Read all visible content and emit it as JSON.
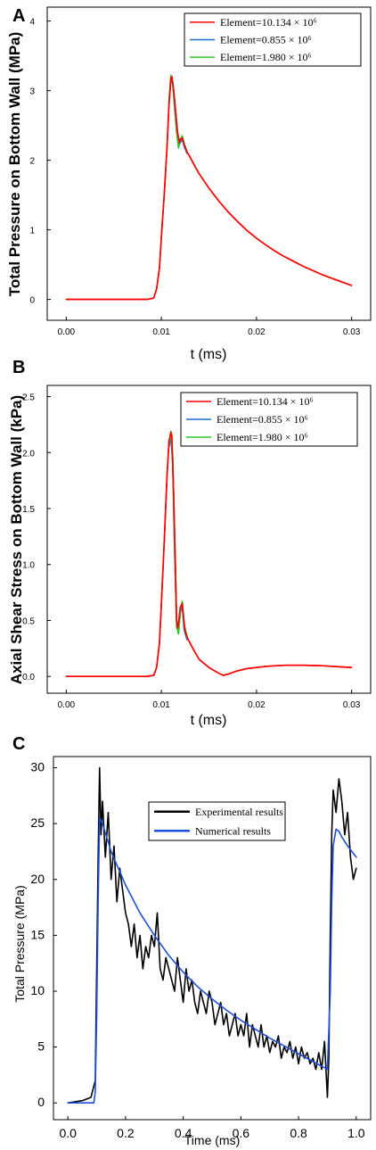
{
  "chart_data": [
    {
      "panel": "A",
      "type": "line",
      "xlabel": "t (ms)",
      "ylabel": "Total Pressure on Bottom Wall (MPa)",
      "xlim": [
        -0.002,
        0.032
      ],
      "ylim": [
        -0.3,
        4.2
      ],
      "xticks": [
        "0.00",
        "0.01",
        "0.02",
        "0.03"
      ],
      "yticks": [
        "0",
        "1",
        "2",
        "3",
        "4"
      ],
      "legend_position": "top-right",
      "series": [
        {
          "name": "Element=10.134 × 10⁶",
          "color": "#ff0000",
          "x": [
            0,
            0.0085,
            0.0092,
            0.0095,
            0.0098,
            0.01,
            0.0103,
            0.0106,
            0.0108,
            0.011,
            0.0111,
            0.0113,
            0.0115,
            0.0117,
            0.0119,
            0.012,
            0.0122,
            0.0124,
            0.0127,
            0.013,
            0.0135,
            0.014,
            0.015,
            0.016,
            0.017,
            0.018,
            0.019,
            0.02,
            0.021,
            0.022,
            0.023,
            0.024,
            0.025,
            0.026,
            0.027,
            0.028,
            0.029,
            0.03
          ],
          "y": [
            0,
            0,
            0.02,
            0.15,
            0.45,
            0.9,
            1.5,
            2.2,
            2.8,
            3.18,
            3.2,
            3.0,
            2.7,
            2.4,
            2.25,
            2.3,
            2.32,
            2.22,
            2.12,
            2.05,
            1.92,
            1.8,
            1.6,
            1.42,
            1.26,
            1.12,
            0.99,
            0.88,
            0.78,
            0.69,
            0.61,
            0.54,
            0.47,
            0.41,
            0.35,
            0.3,
            0.25,
            0.2
          ]
        },
        {
          "name": "Element=0.855 × 10⁶",
          "color": "#1f6fd1",
          "x": [
            0.0108,
            0.011,
            0.0112,
            0.0114,
            0.0116,
            0.0118,
            0.012,
            0.0122,
            0.0124,
            0.0127
          ],
          "y": [
            2.8,
            3.16,
            3.1,
            2.75,
            2.42,
            2.2,
            2.26,
            2.3,
            2.2,
            2.1
          ]
        },
        {
          "name": "Element=1.980 × 10⁶",
          "color": "#2ec82e",
          "x": [
            0.0108,
            0.011,
            0.0112,
            0.0114,
            0.0116,
            0.0118,
            0.012,
            0.0122,
            0.0124,
            0.0127
          ],
          "y": [
            2.82,
            3.22,
            3.12,
            2.78,
            2.45,
            2.18,
            2.3,
            2.35,
            2.24,
            2.12
          ]
        }
      ]
    },
    {
      "panel": "B",
      "type": "line",
      "xlabel": "t (ms)",
      "ylabel": "Axial Shear Stress on Bottom Wall (kPa)",
      "xlim": [
        -0.002,
        0.032
      ],
      "ylim": [
        -0.15,
        2.6
      ],
      "xticks": [
        "0.00",
        "0.01",
        "0.02",
        "0.03"
      ],
      "yticks": [
        "0.0",
        "0.5",
        "1.0",
        "1.5",
        "2.0",
        "2.5"
      ],
      "legend_position": "top-right",
      "series": [
        {
          "name": "Element=10.134 × 10⁶",
          "color": "#ff0000",
          "x": [
            0,
            0.0085,
            0.0092,
            0.0095,
            0.0098,
            0.01,
            0.0103,
            0.0106,
            0.0108,
            0.011,
            0.0111,
            0.0113,
            0.0115,
            0.0116,
            0.0117,
            0.0118,
            0.0119,
            0.012,
            0.0122,
            0.0123,
            0.0125,
            0.0127,
            0.013,
            0.0135,
            0.014,
            0.015,
            0.016,
            0.0165,
            0.017,
            0.018,
            0.019,
            0.02,
            0.021,
            0.022,
            0.023,
            0.024,
            0.025,
            0.026,
            0.027,
            0.028,
            0.029,
            0.03
          ],
          "y": [
            0,
            0,
            0.01,
            0.08,
            0.3,
            0.65,
            1.2,
            1.8,
            2.1,
            2.18,
            2.15,
            1.6,
            0.9,
            0.5,
            0.43,
            0.47,
            0.55,
            0.62,
            0.65,
            0.55,
            0.4,
            0.35,
            0.3,
            0.22,
            0.15,
            0.08,
            0.03,
            0.01,
            0.02,
            0.05,
            0.07,
            0.08,
            0.09,
            0.095,
            0.1,
            0.1,
            0.1,
            0.098,
            0.095,
            0.09,
            0.085,
            0.08
          ]
        },
        {
          "name": "Element=0.855 × 10⁶",
          "color": "#1f6fd1",
          "x": [
            0.0108,
            0.011,
            0.0112,
            0.0114,
            0.0116,
            0.0118,
            0.012,
            0.0122,
            0.0124,
            0.0127
          ],
          "y": [
            2.05,
            2.15,
            1.9,
            1.1,
            0.5,
            0.4,
            0.58,
            0.62,
            0.42,
            0.33
          ]
        },
        {
          "name": "Element=1.980 × 10⁶",
          "color": "#2ec82e",
          "x": [
            0.0108,
            0.011,
            0.0112,
            0.0114,
            0.0116,
            0.0118,
            0.012,
            0.0122,
            0.0124,
            0.0127
          ],
          "y": [
            2.08,
            2.19,
            1.95,
            1.15,
            0.45,
            0.38,
            0.6,
            0.67,
            0.46,
            0.36
          ]
        }
      ]
    },
    {
      "panel": "C",
      "type": "line",
      "xlabel": "Time (ms)",
      "ylabel": "Total Pressure (MPa)",
      "xlim": [
        -0.05,
        1.05
      ],
      "ylim": [
        -1.5,
        31
      ],
      "xticks": [
        "0.0",
        "0.2",
        "0.4",
        "0.6",
        "0.8",
        "1.0"
      ],
      "yticks": [
        "0",
        "5",
        "10",
        "15",
        "20",
        "25",
        "30"
      ],
      "legend_position": "top-center",
      "series": [
        {
          "name": "Experimental results",
          "color": "#000000",
          "x": [
            0,
            0.05,
            0.08,
            0.095,
            0.1,
            0.105,
            0.11,
            0.115,
            0.12,
            0.13,
            0.14,
            0.15,
            0.16,
            0.17,
            0.18,
            0.19,
            0.2,
            0.21,
            0.22,
            0.23,
            0.24,
            0.25,
            0.26,
            0.27,
            0.28,
            0.29,
            0.3,
            0.31,
            0.32,
            0.33,
            0.34,
            0.35,
            0.36,
            0.37,
            0.38,
            0.39,
            0.4,
            0.41,
            0.42,
            0.43,
            0.44,
            0.45,
            0.46,
            0.47,
            0.48,
            0.49,
            0.5,
            0.51,
            0.52,
            0.53,
            0.54,
            0.55,
            0.56,
            0.57,
            0.58,
            0.59,
            0.6,
            0.61,
            0.62,
            0.63,
            0.64,
            0.65,
            0.66,
            0.67,
            0.68,
            0.69,
            0.7,
            0.71,
            0.72,
            0.73,
            0.74,
            0.75,
            0.76,
            0.77,
            0.78,
            0.79,
            0.8,
            0.81,
            0.82,
            0.83,
            0.84,
            0.85,
            0.86,
            0.87,
            0.88,
            0.89,
            0.9,
            0.905,
            0.91,
            0.915,
            0.92,
            0.93,
            0.94,
            0.95,
            0.96,
            0.97,
            0.98,
            0.99,
            1.0
          ],
          "y": [
            0,
            0.2,
            0.5,
            2,
            12,
            22,
            30,
            24,
            27,
            22,
            26,
            20,
            23,
            18,
            21,
            19,
            17,
            16,
            14,
            16,
            13,
            15,
            12,
            14,
            13,
            15,
            14,
            17,
            12,
            11,
            13,
            12,
            11,
            10,
            13,
            11,
            9,
            12,
            10,
            11,
            9,
            8,
            10,
            9,
            8,
            10,
            9,
            7,
            8,
            9,
            7,
            8,
            6,
            7,
            8,
            6,
            7,
            6,
            8,
            5,
            7,
            6,
            5,
            7,
            5,
            6,
            4.5,
            5.5,
            5,
            6,
            4,
            5,
            4.5,
            5.5,
            4,
            5,
            3.5,
            5,
            4,
            4.5,
            3.5,
            4,
            3,
            4.5,
            3,
            5.5,
            0.5,
            4,
            15,
            24,
            28,
            26,
            29,
            27,
            24,
            26,
            22,
            20,
            21
          ]
        },
        {
          "name": "Numerical results",
          "color": "#1f4fd8",
          "x": [
            0,
            0.09,
            0.095,
            0.1,
            0.105,
            0.11,
            0.12,
            0.15,
            0.2,
            0.25,
            0.3,
            0.35,
            0.4,
            0.45,
            0.5,
            0.55,
            0.6,
            0.65,
            0.7,
            0.75,
            0.8,
            0.85,
            0.9,
            0.91,
            0.915,
            0.92,
            0.93,
            0.94,
            0.95,
            0.97,
            1.0
          ],
          "y": [
            0,
            0,
            1,
            8,
            18,
            25.5,
            25,
            22.5,
            19.5,
            17,
            15,
            13.2,
            11.7,
            10.4,
            9.3,
            8.3,
            7.4,
            6.6,
            5.8,
            5.1,
            4.4,
            3.7,
            3,
            10,
            18,
            23,
            24.5,
            24.3,
            23.8,
            23,
            22
          ]
        }
      ]
    }
  ]
}
